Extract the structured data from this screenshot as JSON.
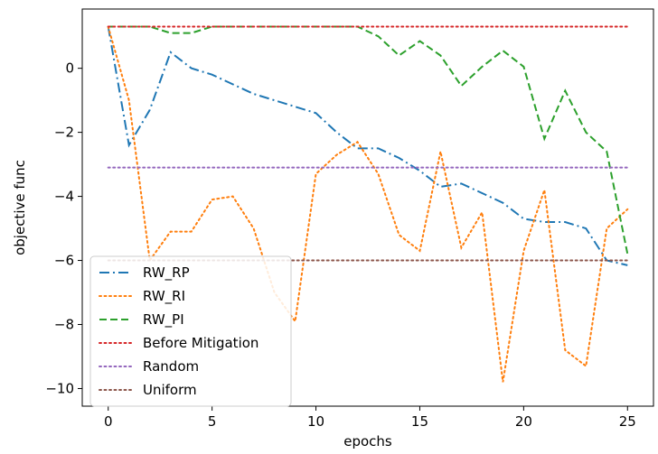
{
  "chart_data": {
    "type": "line",
    "xlabel": "epochs",
    "ylabel": "objective func",
    "xlim": [
      -1.25,
      26.25
    ],
    "ylim": [
      -10.55,
      1.85
    ],
    "xticks": [
      0,
      5,
      10,
      15,
      20,
      25
    ],
    "xtick_labels": [
      "0",
      "5",
      "10",
      "15",
      "20",
      "25"
    ],
    "yticks": [
      -10,
      -8,
      -6,
      -4,
      -2,
      0
    ],
    "ytick_labels": [
      "−10",
      "−8",
      "−6",
      "−4",
      "−2",
      "0"
    ],
    "grid": false,
    "legend_position": "lower-left",
    "series": [
      {
        "name": "RW_RP",
        "color": "#1f77b4",
        "dash": "dashdot",
        "x": [
          0,
          1,
          2,
          3,
          4,
          5,
          6,
          7,
          8,
          9,
          10,
          11,
          12,
          13,
          14,
          15,
          16,
          17,
          18,
          19,
          20,
          21,
          22,
          23,
          24,
          25
        ],
        "y": [
          1.3,
          -2.4,
          -1.3,
          0.5,
          0.0,
          -0.2,
          -0.5,
          -0.8,
          -1.0,
          -1.2,
          -1.4,
          -2.0,
          -2.5,
          -2.5,
          -2.8,
          -3.2,
          -3.7,
          -3.6,
          -3.9,
          -4.2,
          -4.7,
          -4.8,
          -4.8,
          -5.0,
          -6.0,
          -6.15
        ]
      },
      {
        "name": "RW_RI",
        "color": "#ff7f0e",
        "dash": "dotted",
        "x": [
          0,
          1,
          2,
          3,
          4,
          5,
          6,
          7,
          8,
          9,
          10,
          11,
          12,
          13,
          14,
          15,
          16,
          17,
          18,
          19,
          20,
          21,
          22,
          23,
          24,
          25
        ],
        "y": [
          1.3,
          -1.0,
          -6.0,
          -5.1,
          -5.1,
          -4.1,
          -4.0,
          -5.0,
          -7.0,
          -7.9,
          -3.3,
          -2.7,
          -2.3,
          -3.3,
          -5.2,
          -5.7,
          -2.6,
          -5.6,
          -4.5,
          -9.8,
          -5.7,
          -3.8,
          -8.8,
          -9.3,
          -5.0,
          -4.4
        ]
      },
      {
        "name": "RW_PI",
        "color": "#2ca02c",
        "dash": "dashed",
        "x": [
          0,
          1,
          2,
          3,
          4,
          5,
          6,
          7,
          8,
          9,
          10,
          11,
          12,
          13,
          14,
          15,
          16,
          17,
          18,
          19,
          20,
          21,
          22,
          23,
          24,
          25
        ],
        "y": [
          1.3,
          1.3,
          1.3,
          1.1,
          1.1,
          1.3,
          1.3,
          1.3,
          1.3,
          1.3,
          1.3,
          1.3,
          1.3,
          1.0,
          0.4,
          0.85,
          0.4,
          -0.55,
          0.05,
          0.55,
          0.05,
          -2.2,
          -0.7,
          -2.0,
          -2.6,
          -5.8
        ]
      },
      {
        "name": "Before Mitigation",
        "color": "#d62728",
        "dash": "dotted",
        "x": [
          0,
          25
        ],
        "y": [
          1.3,
          1.3
        ]
      },
      {
        "name": "Random",
        "color": "#9467bd",
        "dash": "dotted",
        "x": [
          0,
          25
        ],
        "y": [
          -3.1,
          -3.1
        ]
      },
      {
        "name": "Uniform",
        "color": "#8c564b",
        "dash": "dotted",
        "x": [
          0,
          25
        ],
        "y": [
          -6.0,
          -6.0
        ]
      }
    ]
  }
}
